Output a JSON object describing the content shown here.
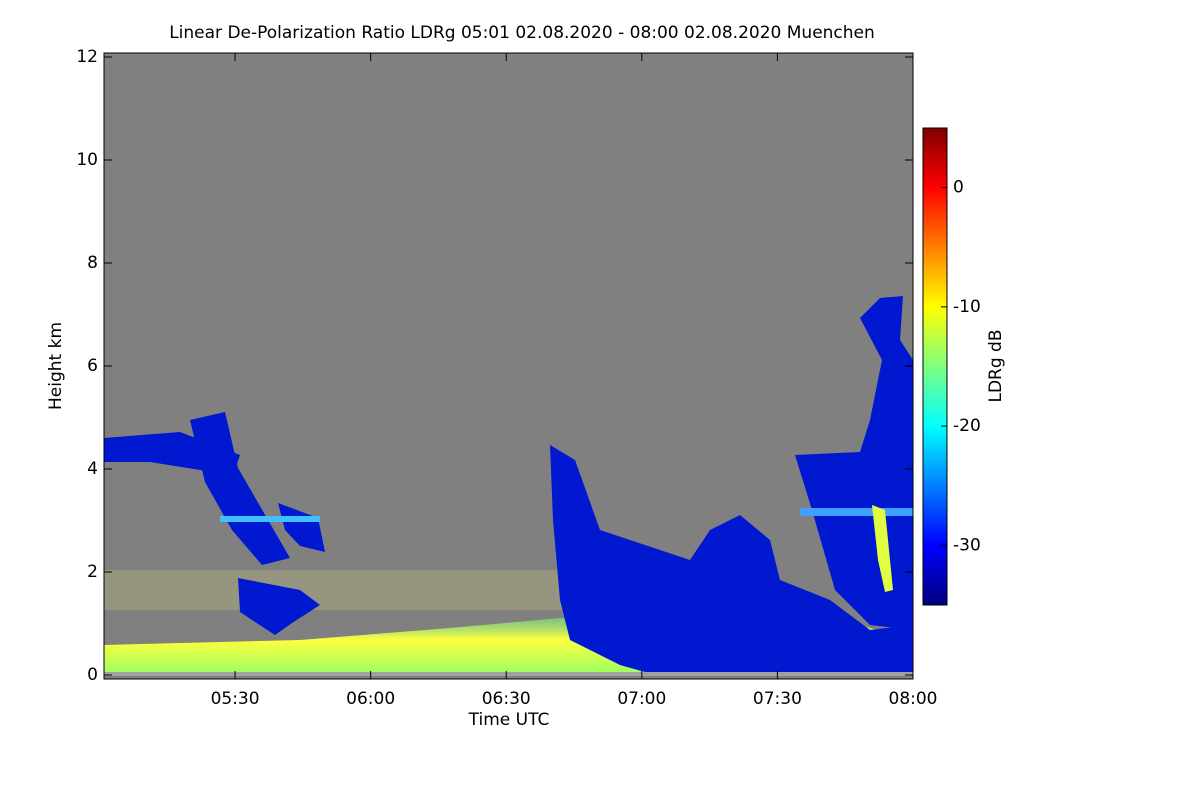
{
  "chart_data": {
    "type": "image",
    "title": "Linear De-Polarization Ratio LDRg   05:01 02.08.2020 - 08:00 02.08.2020 Muenchen",
    "x_label": "Time UTC",
    "y_label": "Height km",
    "xlim": [
      301,
      480
    ],
    "xticks": [
      {
        "value": 330,
        "label": "05:30"
      },
      {
        "value": 360,
        "label": "06:00"
      },
      {
        "value": 390,
        "label": "06:30"
      },
      {
        "value": 420,
        "label": "07:00"
      },
      {
        "value": 450,
        "label": "07:30"
      },
      {
        "value": 480,
        "label": "08:00"
      }
    ],
    "ylim": [
      0,
      12
    ],
    "yticks": [
      0,
      2,
      4,
      6,
      8,
      10,
      12
    ],
    "colorbar": {
      "label": "LDRg dB",
      "lim": [
        -35,
        5
      ],
      "ticks": [
        0,
        -10,
        -20,
        -30
      ],
      "colormap": [
        "#00007f",
        "#0000ff",
        "#007fff",
        "#00ffff",
        "#7fff7f",
        "#ffff00",
        "#ff7f00",
        "#ff0000",
        "#7f0000"
      ]
    },
    "background": "#808080"
  }
}
